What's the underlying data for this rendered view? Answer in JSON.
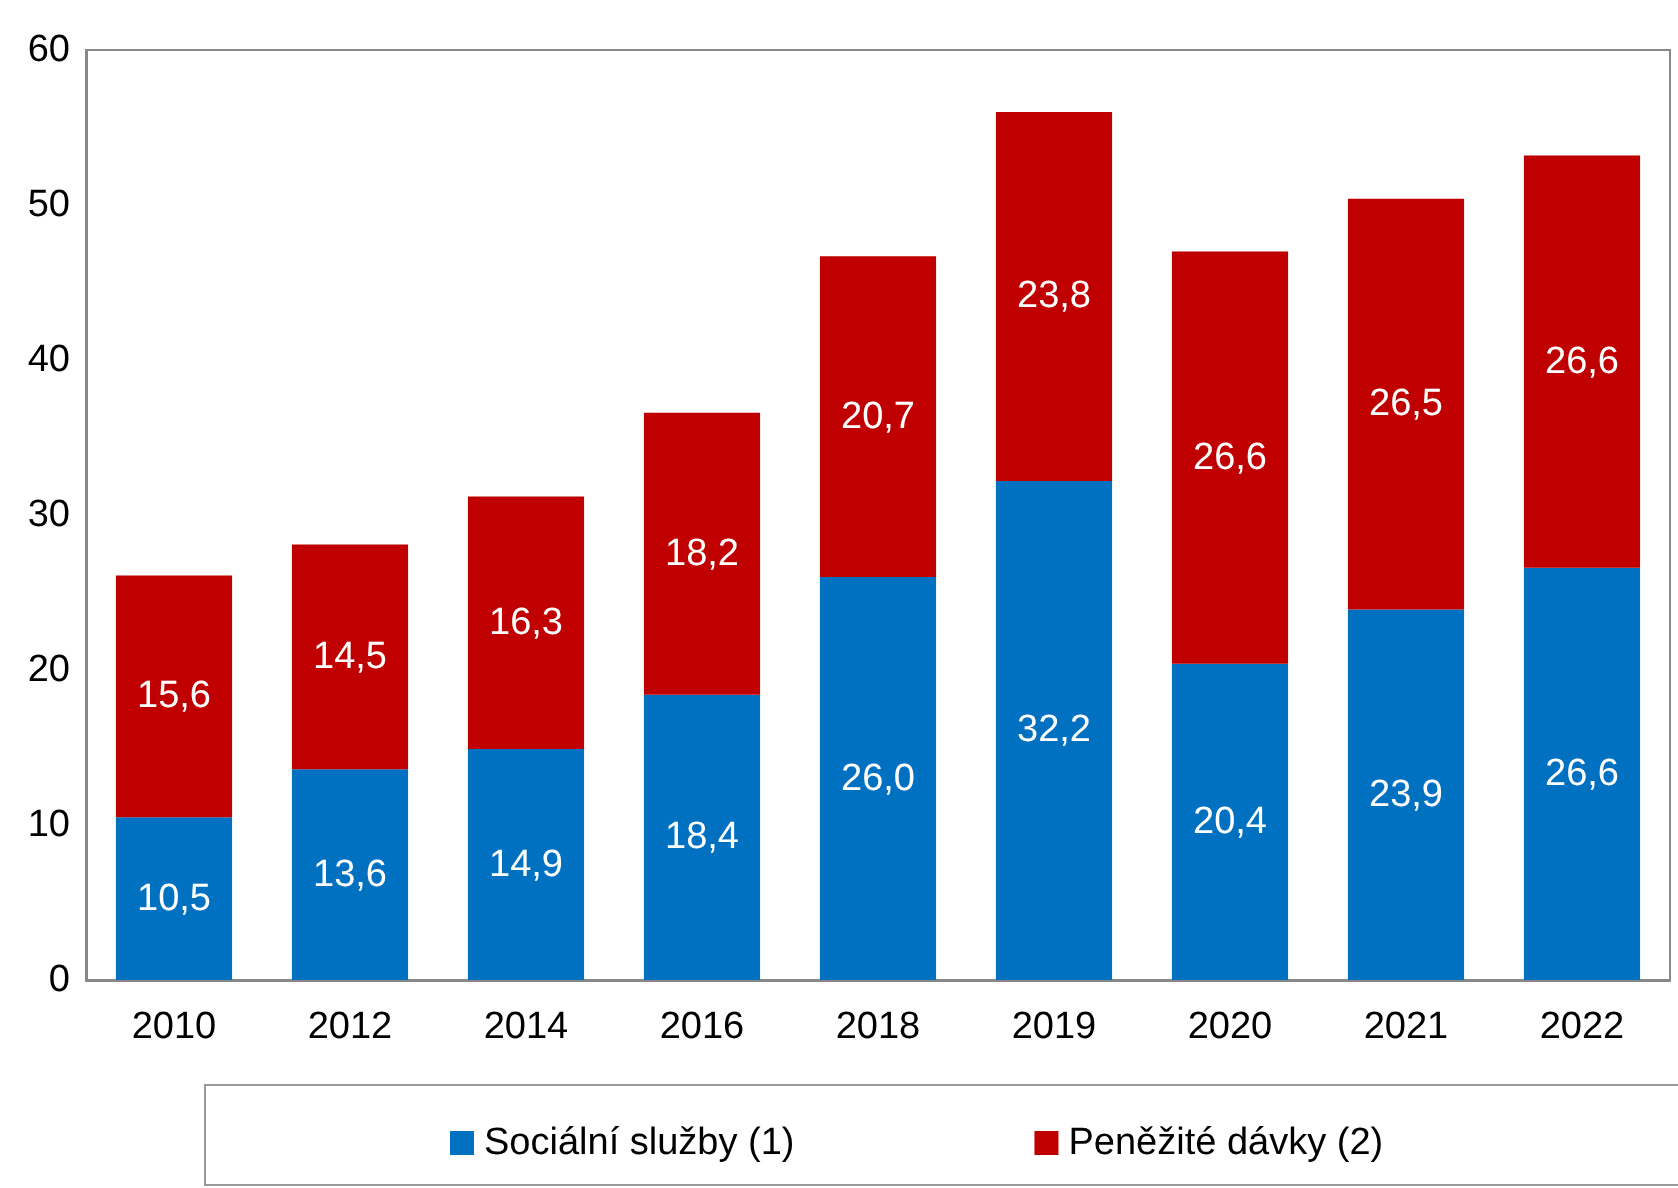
{
  "chart_data": {
    "type": "bar",
    "stacked": true,
    "categories": [
      "2010",
      "2012",
      "2014",
      "2016",
      "2018",
      "2019",
      "2020",
      "2021",
      "2022"
    ],
    "series": [
      {
        "name": "Sociální služby (1)",
        "color": "#0070c0",
        "values": [
          10.5,
          13.6,
          14.9,
          18.4,
          26.0,
          32.2,
          20.4,
          23.9,
          26.6
        ],
        "value_labels": [
          "10,5",
          "13,6",
          "14,9",
          "18,4",
          "26,0",
          "32,2",
          "20,4",
          "23,9",
          "26,6"
        ]
      },
      {
        "name": "Peněžité dávky (2)",
        "color": "#c00000",
        "values": [
          15.6,
          14.5,
          16.3,
          18.2,
          20.7,
          23.8,
          26.6,
          26.5,
          26.6
        ],
        "value_labels": [
          "15,6",
          "14,5",
          "16,3",
          "18,2",
          "20,7",
          "23,8",
          "26,6",
          "26,5",
          "26,6"
        ]
      }
    ],
    "ylim": [
      0,
      60
    ],
    "yticks": [
      0,
      10,
      20,
      30,
      40,
      50,
      60
    ],
    "grid": false,
    "legend": "bottom"
  }
}
